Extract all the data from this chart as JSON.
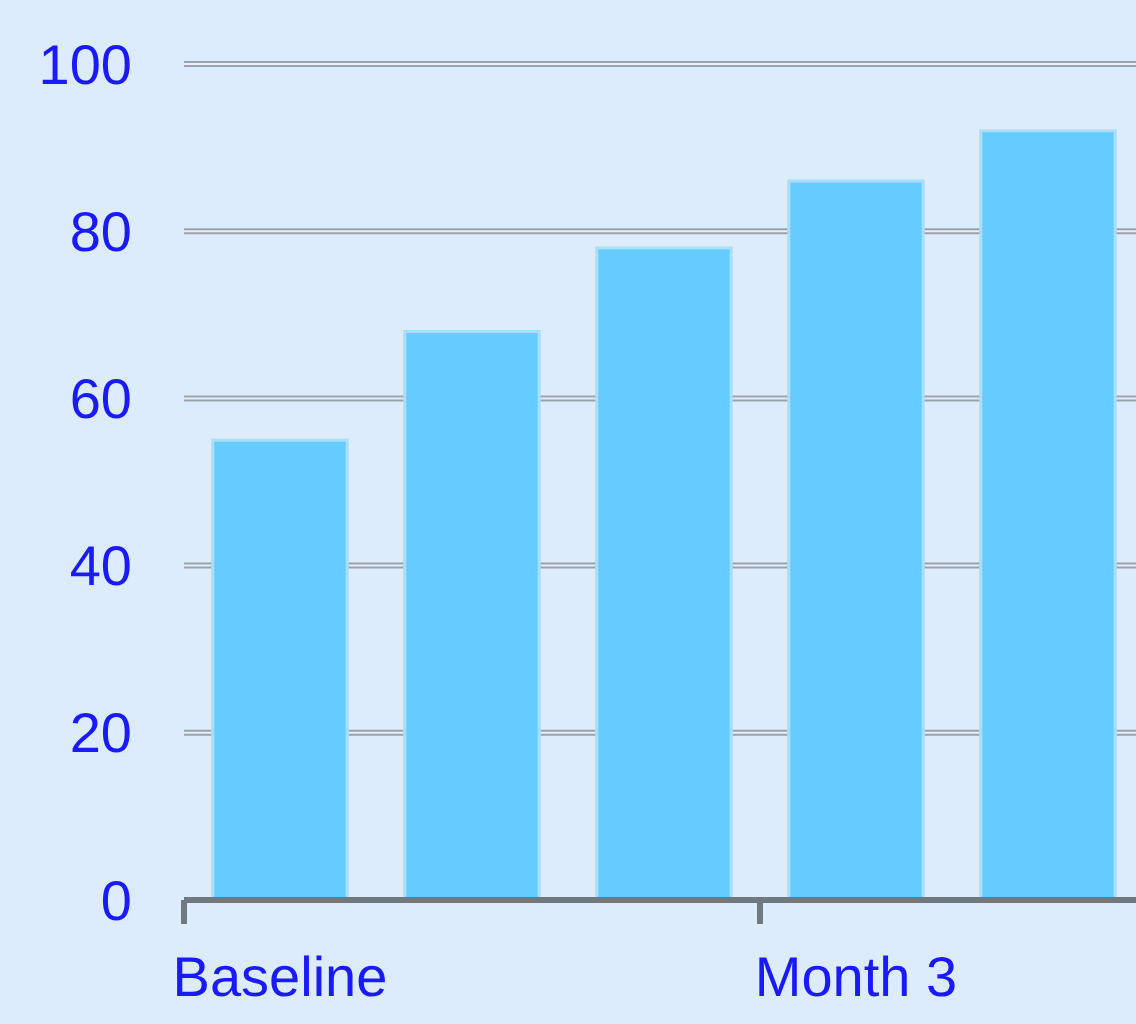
{
  "chart_data": {
    "type": "bar",
    "categories": [
      "Baseline",
      null,
      null,
      "Month 3",
      null
    ],
    "values": [
      55,
      68,
      78,
      86,
      92
    ],
    "color": "#66ccff",
    "ylim": [
      0,
      100
    ],
    "yticks": [
      0,
      20,
      40,
      60,
      80,
      100
    ],
    "grid": "y"
  }
}
